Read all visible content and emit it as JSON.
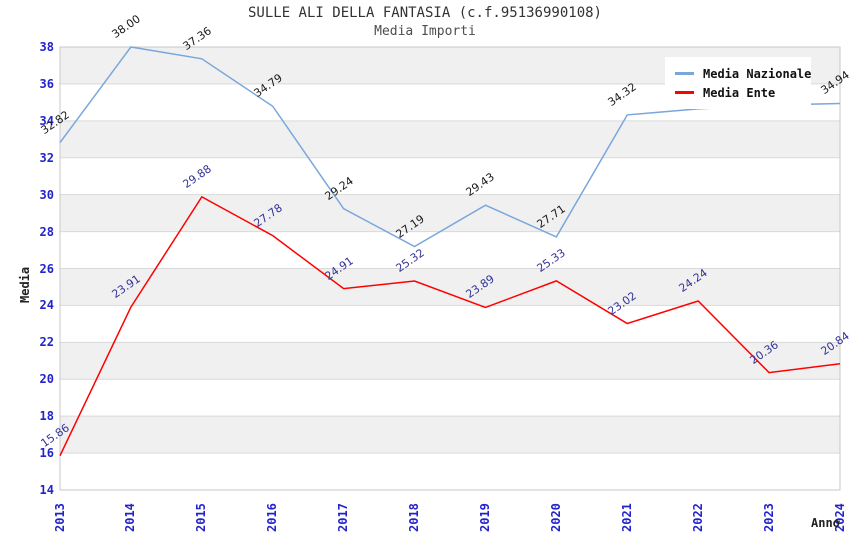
{
  "title": "SULLE ALI DELLA FANTASIA (c.f.95136990108)",
  "subtitle": "Media Importi",
  "legend": {
    "position": "top-right",
    "items": [
      {
        "label": "Media Nazionale",
        "color": "#79a7dc"
      },
      {
        "label": "Media Ente",
        "color": "#ff0000"
      }
    ]
  },
  "chart_data": {
    "type": "line",
    "title": "SULLE ALI DELLA FANTASIA (c.f.95136990108)",
    "subtitle": "Media Importi",
    "xlabel": "Anno",
    "ylabel": "Media",
    "x": [
      "2013",
      "2014",
      "2015",
      "2016",
      "2017",
      "2018",
      "2019",
      "2020",
      "2021",
      "2022",
      "2023",
      "2024"
    ],
    "ylim": [
      14,
      38
    ],
    "ytick_step": 2,
    "grid": "horizontal-bands",
    "band_color": "#f0f0f0",
    "gridline_color": "#d9d9d9",
    "tick_label_color": "#2323cc",
    "series": [
      {
        "name": "Media Nazionale",
        "color": "#79a7dc",
        "label_color": "#1a1a1a",
        "values": [
          32.82,
          38.0,
          37.36,
          34.79,
          29.24,
          27.19,
          29.43,
          27.71,
          34.32,
          34.65,
          34.85,
          34.94
        ],
        "point_labels": [
          "32.82",
          "38.00",
          "37.36",
          "34.79",
          "29.24",
          "27.19",
          "29.43",
          "27.71",
          "34.32",
          "34.65",
          "34.85",
          "34.94"
        ]
      },
      {
        "name": "Media Ente",
        "color": "#ff0000",
        "label_color": "#333399",
        "values": [
          15.86,
          23.91,
          29.88,
          27.78,
          24.91,
          25.32,
          23.89,
          25.33,
          23.02,
          24.24,
          20.36,
          20.84
        ],
        "point_labels": [
          "15.86",
          "23.91",
          "29.88",
          "27.78",
          "24.91",
          "25.32",
          "23.89",
          "25.33",
          "23.02",
          "24.24",
          "20.36",
          "20.84"
        ]
      }
    ]
  }
}
